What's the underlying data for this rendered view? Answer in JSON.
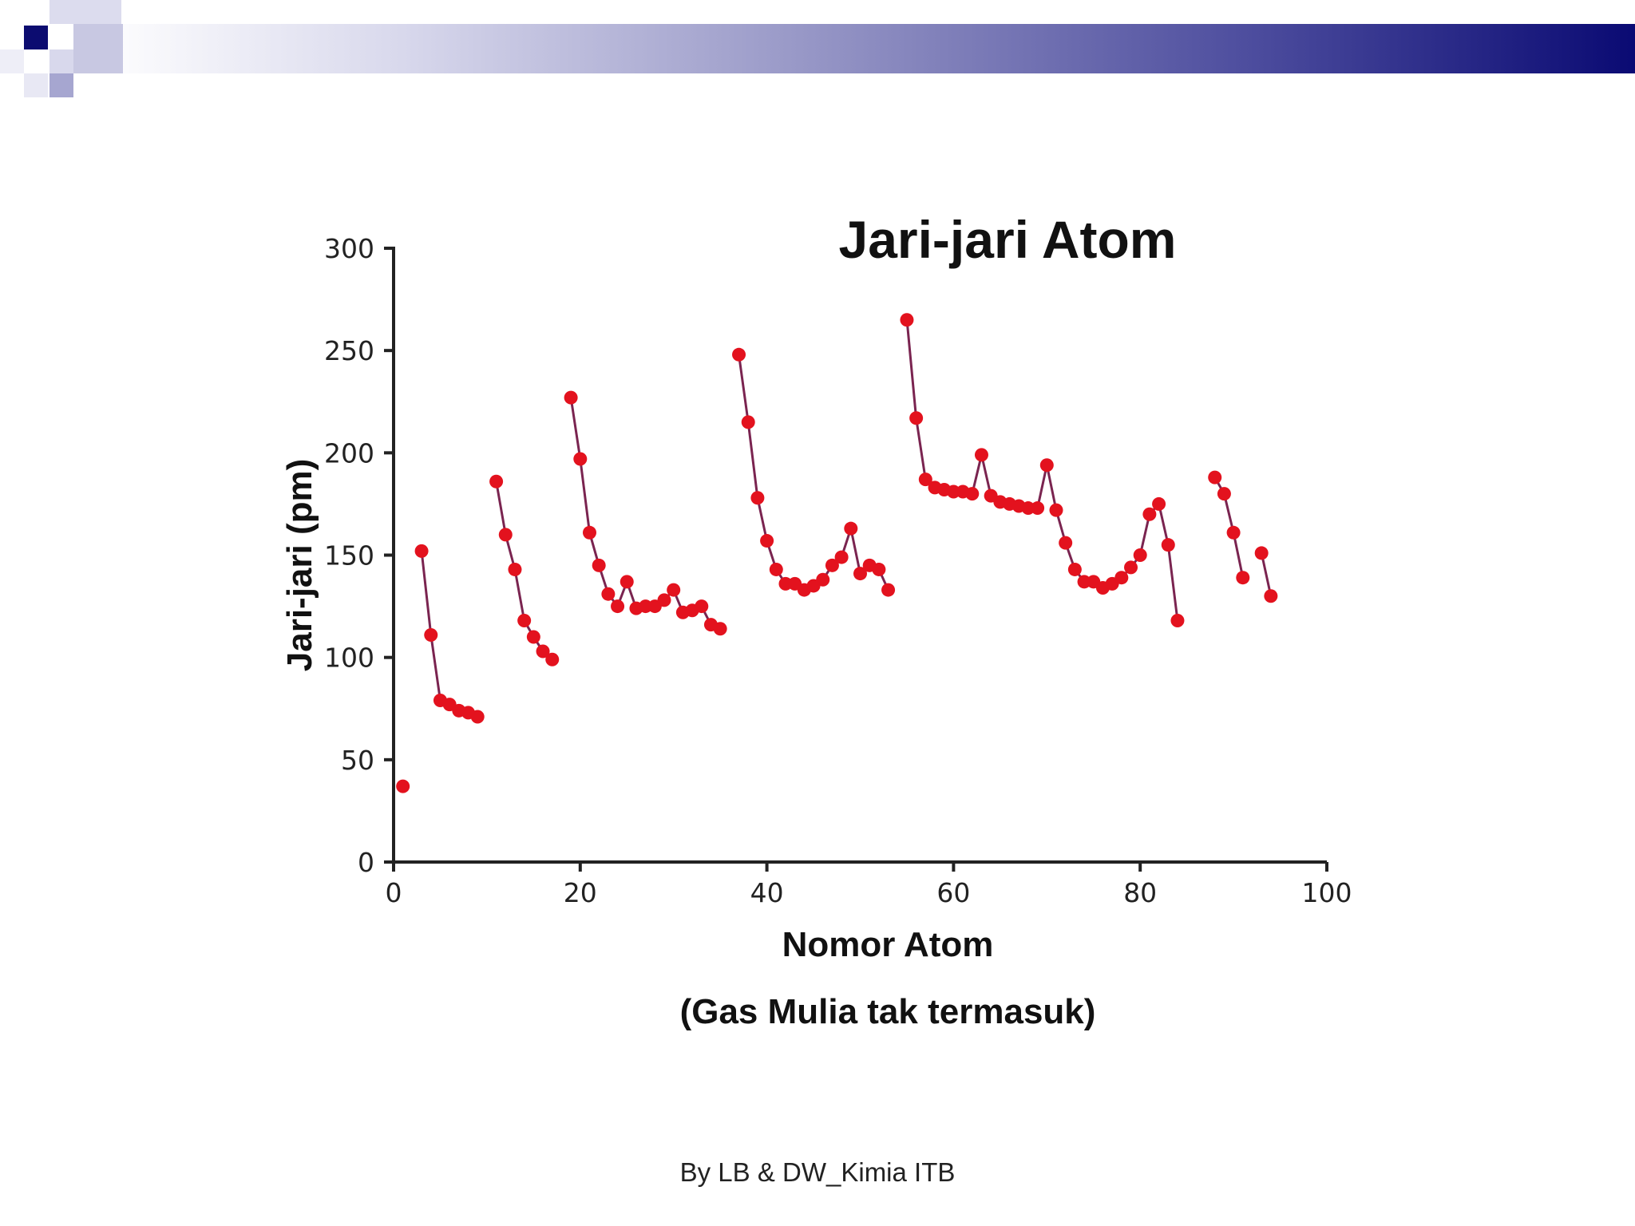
{
  "slide": {
    "footer": "By LB & DW_Kimia ITB",
    "note": "(Gas Mulia tak termasuk)"
  },
  "colors": {
    "marker": "#e3121e",
    "line": "#7a2450",
    "banner_dark": "#0a0a73"
  },
  "chart_data": {
    "type": "line",
    "title": "Jari-jari Atom",
    "xlabel": "Nomor Atom",
    "ylabel": "Jari-jari (pm)",
    "xlim": [
      0,
      100
    ],
    "ylim": [
      0,
      300
    ],
    "xticks": [
      0,
      20,
      40,
      60,
      80,
      100
    ],
    "yticks": [
      0,
      50,
      100,
      150,
      200,
      250,
      300
    ],
    "grid": false,
    "segments": [
      {
        "x": [
          1
        ],
        "y": [
          37
        ]
      },
      {
        "x": [
          3,
          4,
          5,
          6,
          7,
          8,
          9
        ],
        "y": [
          152,
          111,
          79,
          77,
          74,
          73,
          71
        ]
      },
      {
        "x": [
          11,
          12,
          13,
          14,
          15,
          16,
          17
        ],
        "y": [
          186,
          160,
          143,
          118,
          110,
          103,
          99
        ]
      },
      {
        "x": [
          19,
          20,
          21,
          22,
          23,
          24,
          25,
          26,
          27,
          28,
          29,
          30,
          31,
          32,
          33,
          34,
          35
        ],
        "y": [
          227,
          197,
          161,
          145,
          131,
          125,
          137,
          124,
          125,
          125,
          128,
          133,
          122,
          123,
          125,
          116,
          114
        ]
      },
      {
        "x": [
          37,
          38,
          39,
          40,
          41,
          42,
          43,
          44,
          45,
          46,
          47,
          48,
          49,
          50,
          51,
          52,
          53
        ],
        "y": [
          248,
          215,
          178,
          157,
          143,
          136,
          136,
          133,
          135,
          138,
          145,
          149,
          163,
          141,
          145,
          143,
          133
        ]
      },
      {
        "x": [
          55,
          56,
          57,
          58,
          59,
          60,
          61,
          62,
          63,
          64,
          65,
          66,
          67,
          68,
          69,
          70,
          71,
          72,
          73,
          74,
          75,
          76,
          77,
          78,
          79,
          80,
          81,
          82,
          83,
          84
        ],
        "y": [
          265,
          217,
          187,
          183,
          182,
          181,
          181,
          180,
          199,
          179,
          176,
          175,
          174,
          173,
          173,
          194,
          172,
          156,
          143,
          137,
          137,
          134,
          136,
          139,
          144,
          150,
          170,
          175,
          155,
          118
        ]
      },
      {
        "x": [
          88,
          89,
          90,
          91
        ],
        "y": [
          188,
          180,
          161,
          139
        ]
      },
      {
        "x": [
          93,
          94
        ],
        "y": [
          151,
          130
        ]
      }
    ]
  }
}
